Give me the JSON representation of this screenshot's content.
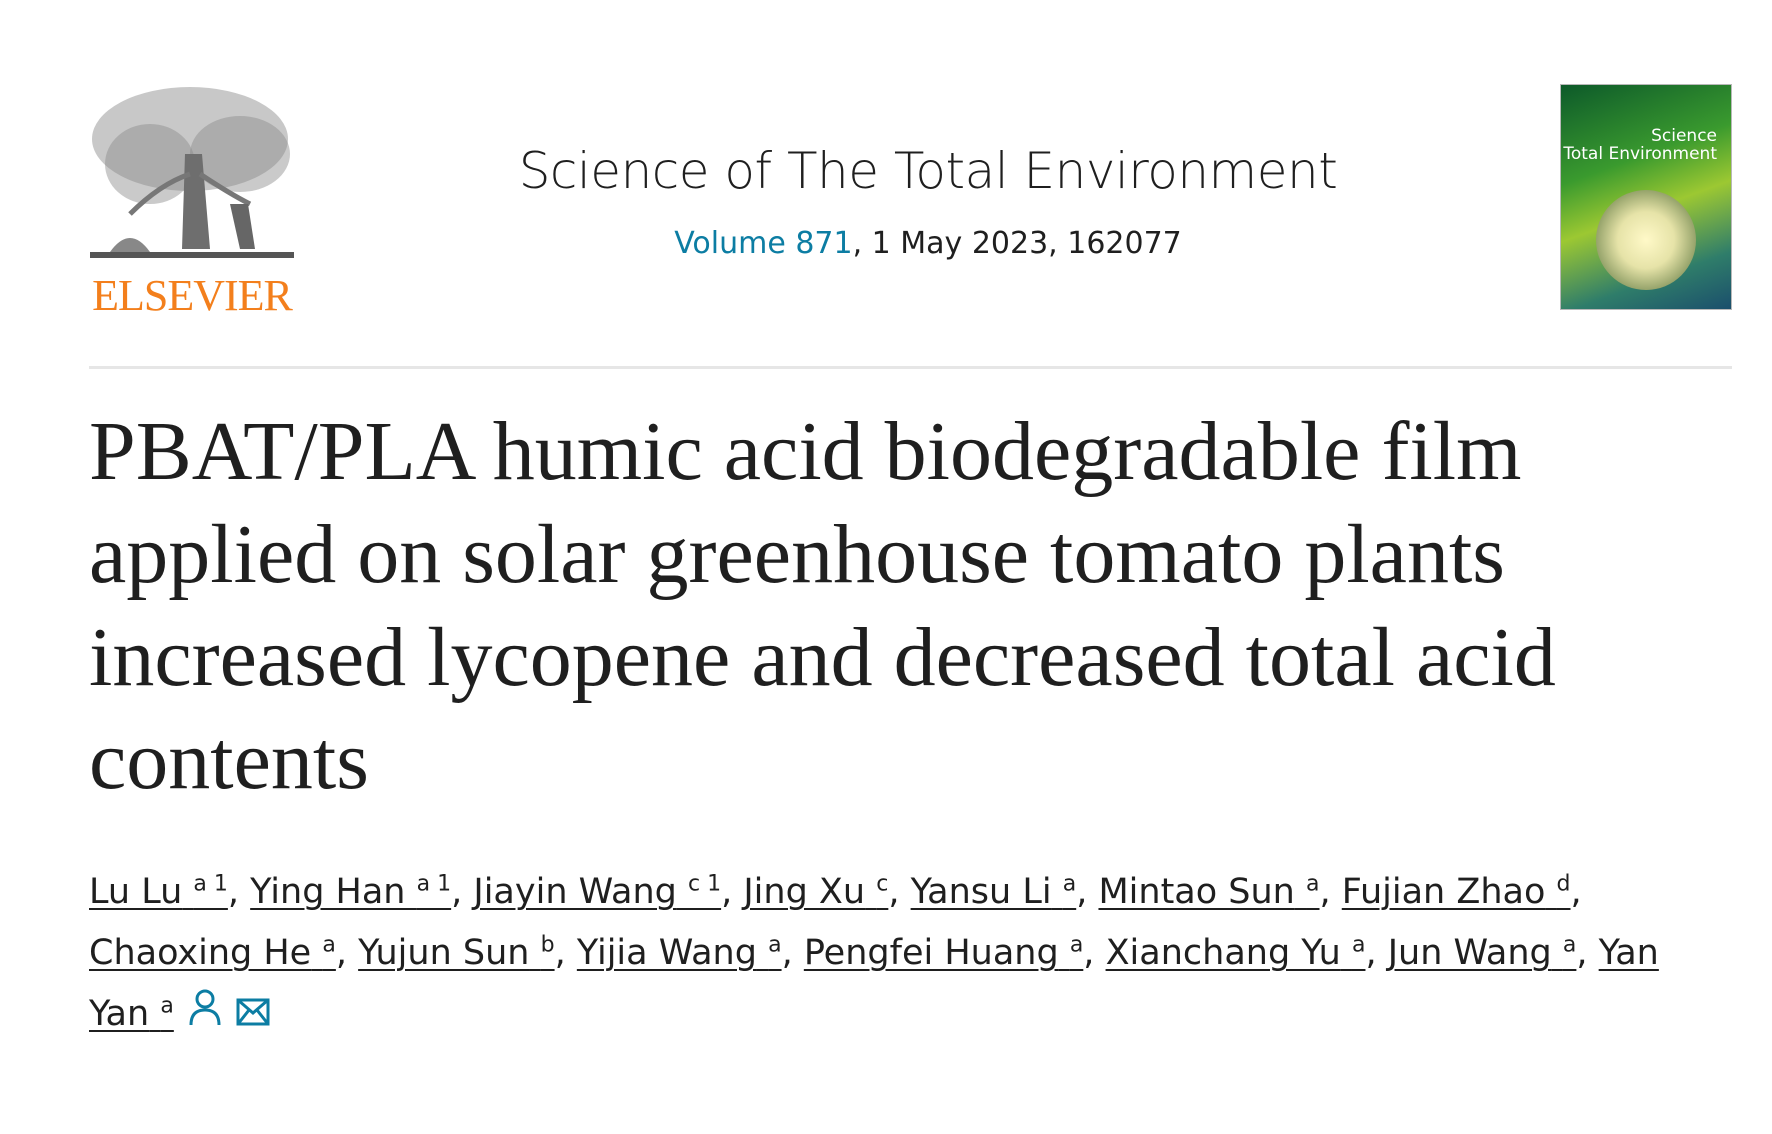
{
  "publisher": {
    "logo_text": "ELSEVIER",
    "color": "#f37f1c"
  },
  "journal": {
    "title": "Science of The Total Environment",
    "volume_link": "Volume 871",
    "issue_rest": ", 1 May 2023, 162077",
    "link_color": "#0c7da3",
    "cover_text_1": "Science",
    "cover_text_2": "Total Environment"
  },
  "article": {
    "title": "PBAT/PLA humic acid biodegradable film applied on solar greenhouse tomato plants increased lycopene and decreased total acid contents"
  },
  "authors": [
    {
      "name": "Lu Lu",
      "sup": "a 1"
    },
    {
      "name": "Ying Han",
      "sup": "a 1"
    },
    {
      "name": "Jiayin Wang",
      "sup": "c 1"
    },
    {
      "name": "Jing Xu",
      "sup": "c"
    },
    {
      "name": "Yansu Li",
      "sup": "a"
    },
    {
      "name": "Mintao Sun",
      "sup": "a"
    },
    {
      "name": "Fujian Zhao",
      "sup": "d"
    },
    {
      "name": "Chaoxing He",
      "sup": "a"
    },
    {
      "name": "Yujun Sun",
      "sup": "b"
    },
    {
      "name": "Yijia Wang",
      "sup": "a"
    },
    {
      "name": "Pengfei Huang",
      "sup": "a"
    },
    {
      "name": "Xianchang Yu",
      "sup": "a"
    },
    {
      "name": "Jun Wang",
      "sup": "a"
    },
    {
      "name": "Yan Yan",
      "sup": "a"
    }
  ],
  "icons": {
    "person": "person-icon",
    "email": "envelope-icon"
  }
}
